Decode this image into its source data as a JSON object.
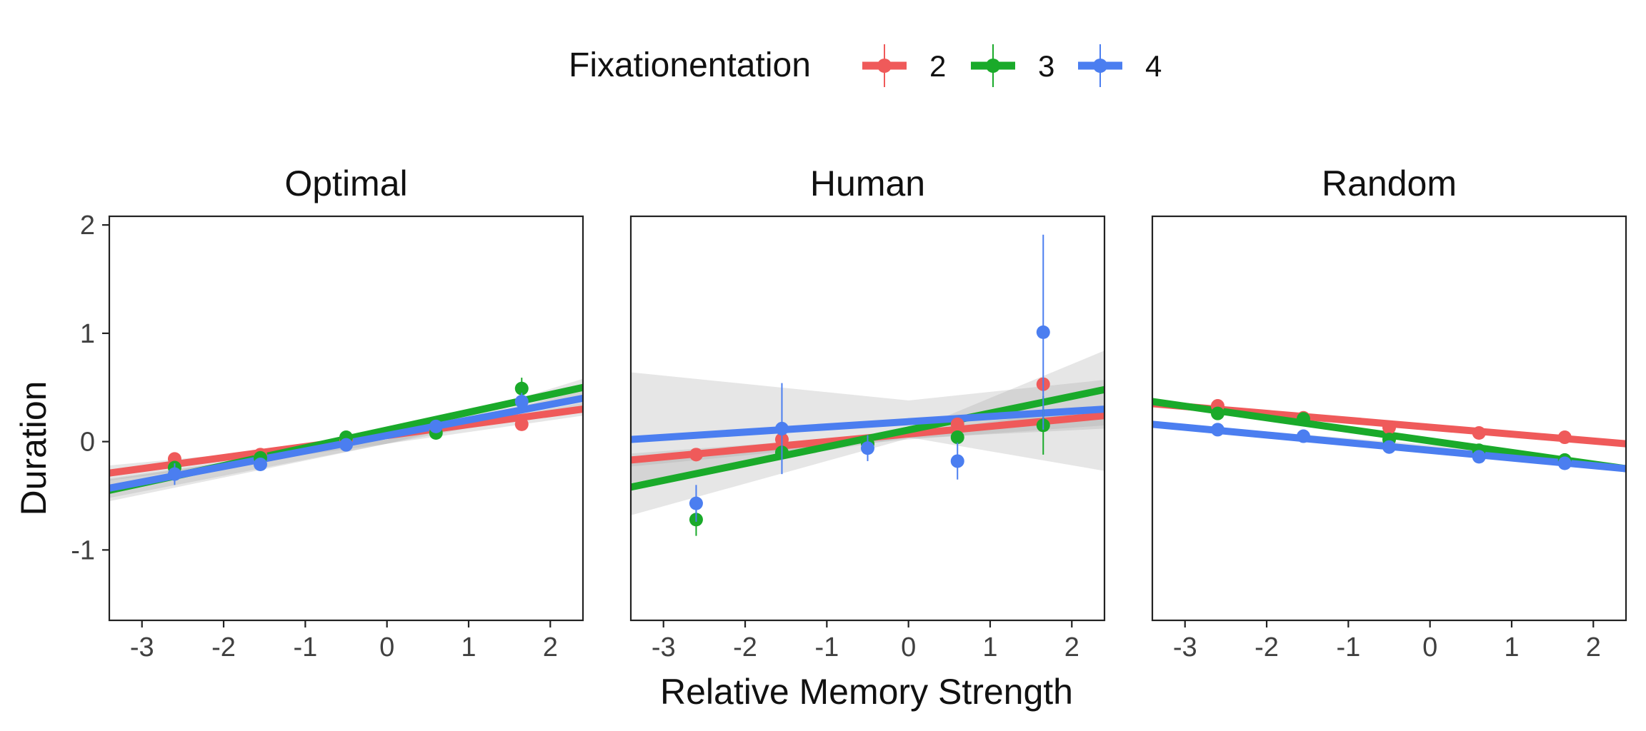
{
  "figure": {
    "legend_title": "Fixationentation",
    "xlabel": "Relative Memory Strength",
    "ylabel": "Duration"
  },
  "colors": {
    "2": "#ef5a5a",
    "3": "#1aaa2a",
    "4": "#4b7ef0",
    "ribbon": "#a6a6a6",
    "axis": "#222222",
    "tick_text": "#404040"
  },
  "chart_data": {
    "type": "scatter",
    "legend": [
      {
        "label": "2",
        "color": "#ef5a5a"
      },
      {
        "label": "3",
        "color": "#1aaa2a"
      },
      {
        "label": "4",
        "color": "#4b7ef0"
      }
    ],
    "xlim": [
      -3.4,
      2.4
    ],
    "ylim": [
      -1.65,
      2.08
    ],
    "xticks": [
      -3,
      -2,
      -1,
      0,
      1,
      2
    ],
    "yticks": [
      -1,
      0,
      1,
      2
    ],
    "xtick_labels": [
      "-3",
      "-2",
      "-1",
      "0",
      "1",
      "2"
    ],
    "ytick_labels": [
      "-1",
      "0",
      "1",
      "2"
    ],
    "panels": [
      {
        "title": "Optimal",
        "series": [
          {
            "name": "2",
            "color": "#ef5a5a",
            "points": [
              [
                -2.6,
                -0.16,
                0.03
              ],
              [
                -1.55,
                -0.12,
                0.03
              ],
              [
                -0.5,
                0.02,
                0.03
              ],
              [
                0.6,
                0.1,
                0.03
              ],
              [
                1.65,
                0.16,
                0.03
              ]
            ],
            "fit": [
              [
                -3.4,
                -0.29
              ],
              [
                2.4,
                0.3
              ]
            ],
            "band": [
              [
                -3.4,
                -0.36,
                -0.22
              ],
              [
                0,
                -0.02,
                0.02
              ],
              [
                2.4,
                0.24,
                0.36
              ]
            ]
          },
          {
            "name": "3",
            "color": "#1aaa2a",
            "points": [
              [
                -2.6,
                -0.24,
                0.04
              ],
              [
                -1.55,
                -0.15,
                0.03
              ],
              [
                -0.5,
                0.04,
                0.03
              ],
              [
                0.6,
                0.08,
                0.03
              ],
              [
                1.65,
                0.49,
                0.1
              ]
            ],
            "fit": [
              [
                -3.4,
                -0.45
              ],
              [
                2.4,
                0.5
              ]
            ],
            "band": [
              [
                -3.4,
                -0.55,
                -0.35
              ],
              [
                0,
                -0.02,
                0.02
              ],
              [
                2.4,
                0.42,
                0.58
              ]
            ]
          },
          {
            "name": "4",
            "color": "#4b7ef0",
            "points": [
              [
                -2.6,
                -0.3,
                0.1
              ],
              [
                -1.55,
                -0.21,
                0.03
              ],
              [
                -0.5,
                -0.03,
                0.03
              ],
              [
                0.6,
                0.14,
                0.03
              ],
              [
                1.65,
                0.37,
                0.08
              ]
            ],
            "fit": [
              [
                -3.4,
                -0.43
              ],
              [
                2.4,
                0.4
              ]
            ],
            "band": [
              [
                -3.4,
                -0.52,
                -0.34
              ],
              [
                0,
                -0.02,
                0.02
              ],
              [
                2.4,
                0.33,
                0.47
              ]
            ]
          }
        ]
      },
      {
        "title": "Human",
        "series": [
          {
            "name": "2",
            "color": "#ef5a5a",
            "points": [
              [
                -2.6,
                -0.12,
                0.03
              ],
              [
                -1.55,
                0.02,
                0.03
              ],
              [
                -0.5,
                -0.02,
                0.03
              ],
              [
                0.6,
                0.16,
                0.03
              ],
              [
                1.65,
                0.53,
                0.04
              ]
            ],
            "fit": [
              [
                -3.4,
                -0.17
              ],
              [
                2.4,
                0.24
              ]
            ],
            "band": [
              [
                -3.4,
                -0.23,
                -0.11
              ],
              [
                0,
                0.02,
                0.08
              ],
              [
                2.4,
                0.15,
                0.33
              ]
            ]
          },
          {
            "name": "3",
            "color": "#1aaa2a",
            "points": [
              [
                -2.6,
                -0.72,
                0.15
              ],
              [
                -1.55,
                -0.1,
                0.03
              ],
              [
                -0.5,
                -0.02,
                0.03
              ],
              [
                0.6,
                0.04,
                0.03
              ],
              [
                1.65,
                0.15,
                0.27
              ]
            ],
            "fit": [
              [
                -3.4,
                -0.42
              ],
              [
                2.4,
                0.48
              ]
            ],
            "band": [
              [
                -3.4,
                -0.68,
                -0.16
              ],
              [
                0,
                0.03,
                0.09
              ],
              [
                2.4,
                0.12,
                0.84
              ]
            ]
          },
          {
            "name": "4",
            "color": "#4b7ef0",
            "points": [
              [
                -2.6,
                -0.57,
                0.17
              ],
              [
                -1.55,
                0.12,
                0.42
              ],
              [
                -0.5,
                -0.06,
                0.12
              ],
              [
                0.6,
                -0.18,
                0.17
              ],
              [
                1.65,
                1.01,
                0.9
              ]
            ],
            "fit": [
              [
                -3.4,
                0.02
              ],
              [
                2.4,
                0.3
              ]
            ],
            "band": [
              [
                -3.4,
                -0.38,
                0.64
              ],
              [
                0,
                0.04,
                0.38
              ],
              [
                2.4,
                -0.27,
                0.57
              ]
            ]
          }
        ]
      },
      {
        "title": "Random",
        "series": [
          {
            "name": "2",
            "color": "#ef5a5a",
            "points": [
              [
                -2.6,
                0.33,
                0.03
              ],
              [
                -1.55,
                0.22,
                0.03
              ],
              [
                -0.5,
                0.13,
                0.03
              ],
              [
                0.6,
                0.08,
                0.03
              ],
              [
                1.65,
                0.04,
                0.03
              ]
            ],
            "fit": [
              [
                -3.4,
                0.35
              ],
              [
                2.4,
                -0.02
              ]
            ],
            "band": [
              [
                -3.4,
                0.33,
                0.37
              ],
              [
                0,
                0.12,
                0.14
              ],
              [
                2.4,
                -0.04,
                0.0
              ]
            ]
          },
          {
            "name": "3",
            "color": "#1aaa2a",
            "points": [
              [
                -2.6,
                0.26,
                0.03
              ],
              [
                -1.55,
                0.21,
                0.03
              ],
              [
                -0.5,
                0.02,
                0.03
              ],
              [
                0.6,
                -0.08,
                0.03
              ],
              [
                1.65,
                -0.17,
                0.03
              ]
            ],
            "fit": [
              [
                -3.4,
                0.37
              ],
              [
                2.4,
                -0.25
              ]
            ],
            "band": [
              [
                -3.4,
                0.35,
                0.39
              ],
              [
                0,
                0.0,
                0.02
              ],
              [
                2.4,
                -0.27,
                -0.23
              ]
            ]
          },
          {
            "name": "4",
            "color": "#4b7ef0",
            "points": [
              [
                -2.6,
                0.11,
                0.03
              ],
              [
                -1.55,
                0.05,
                0.03
              ],
              [
                -0.5,
                -0.05,
                0.03
              ],
              [
                0.6,
                -0.14,
                0.03
              ],
              [
                1.65,
                -0.2,
                0.03
              ]
            ],
            "fit": [
              [
                -3.4,
                0.16
              ],
              [
                2.4,
                -0.25
              ]
            ],
            "band": [
              [
                -3.4,
                0.14,
                0.18
              ],
              [
                0,
                -0.05,
                -0.03
              ],
              [
                2.4,
                -0.27,
                -0.23
              ]
            ]
          }
        ]
      }
    ]
  }
}
